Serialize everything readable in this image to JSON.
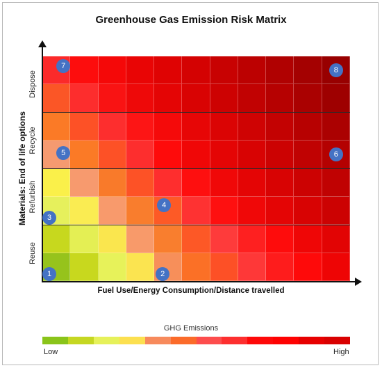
{
  "title": "Greenhouse Gas Emission Risk Matrix",
  "y_axis_title": "Materials: End of life options",
  "x_axis_title": "Fuel Use/Energy Consumption/Distance travelled",
  "rows": [
    {
      "label": "Dispose"
    },
    {
      "label": "Recycle"
    },
    {
      "label": "Refurbish"
    },
    {
      "label": "Reuse"
    }
  ],
  "grid_colors": [
    [
      "#fb2a2a",
      "#fd0d0d",
      "#f50808",
      "#e90505",
      "#df0303",
      "#d40202",
      "#c80202",
      "#bc0101",
      "#b00101",
      "#a40101",
      "#980000"
    ],
    [
      "#fb5626",
      "#fd2d2d",
      "#f91313",
      "#ee0909",
      "#e40505",
      "#d90303",
      "#cd0202",
      "#c10202",
      "#b60101",
      "#aa0101",
      "#9e0000"
    ],
    [
      "#fb7a26",
      "#fd5126",
      "#fd2e2e",
      "#fd1515",
      "#f50a0a",
      "#e70606",
      "#db0404",
      "#cf0303",
      "#c30202",
      "#b70101",
      "#ab0101"
    ],
    [
      "#f59a70",
      "#fb7a26",
      "#fd5126",
      "#fd2e2e",
      "#fe0b0b",
      "#f00707",
      "#e40505",
      "#d80303",
      "#cc0202",
      "#c00202",
      "#b40101"
    ],
    [
      "#faf04a",
      "#f79a6e",
      "#f97a2a",
      "#fd5226",
      "#fe2e2e",
      "#fe0f0f",
      "#f00808",
      "#e40505",
      "#d80303",
      "#cc0202",
      "#c00202"
    ],
    [
      "#e6f05c",
      "#faec52",
      "#f89a6c",
      "#f97d2d",
      "#fd5a26",
      "#fe3232",
      "#fe1010",
      "#f00808",
      "#e40505",
      "#d80303",
      "#cc0202"
    ],
    [
      "#c7d81e",
      "#e4ef54",
      "#fae64e",
      "#f89a6a",
      "#f97e2e",
      "#fd5826",
      "#fe3b3b",
      "#fe2020",
      "#fe0c0c",
      "#ef0606",
      "#e20404"
    ],
    [
      "#96c31c",
      "#c8d81e",
      "#e7f25a",
      "#fbe450",
      "#f78f5a",
      "#fb7026",
      "#fd5026",
      "#fe3838",
      "#fe1c1c",
      "#fe0a0a",
      "#ee0505"
    ]
  ],
  "markers": [
    {
      "label": "1",
      "col": 0.25,
      "row": 7.75
    },
    {
      "label": "2",
      "col": 4.3,
      "row": 7.75
    },
    {
      "label": "3",
      "col": 0.25,
      "row": 5.75
    },
    {
      "label": "4",
      "col": 4.35,
      "row": 5.3
    },
    {
      "label": "5",
      "col": 0.75,
      "row": 3.45
    },
    {
      "label": "6",
      "col": 10.5,
      "row": 3.5
    },
    {
      "label": "7",
      "col": 0.75,
      "row": 0.35
    },
    {
      "label": "8",
      "col": 10.5,
      "row": 0.5
    }
  ],
  "legend": {
    "title": "GHG Emissions",
    "low": "Low",
    "high": "High",
    "colors": [
      "#8ac41a",
      "#c5d722",
      "#e6f15a",
      "#fce050",
      "#f78a5c",
      "#fb6b2a",
      "#fd4d4d",
      "#fd2f2f",
      "#fe0909",
      "#fe0202",
      "#e70000",
      "#d90000"
    ]
  }
}
